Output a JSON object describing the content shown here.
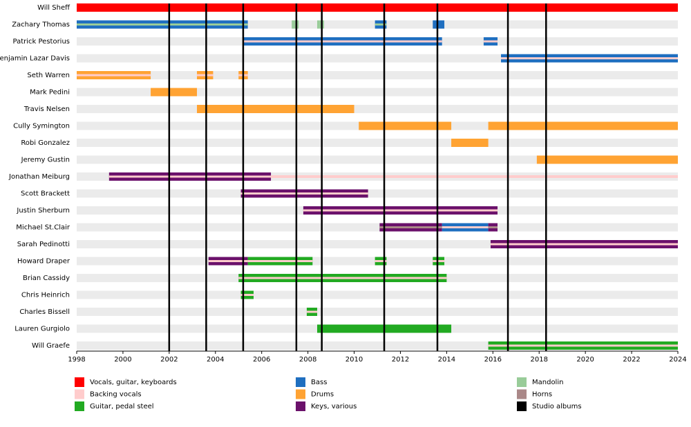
{
  "chart_data": {
    "type": "timeline",
    "xlim": [
      1998,
      2024
    ],
    "xticks": [
      1998,
      2000,
      2002,
      2004,
      2006,
      2008,
      2010,
      2012,
      2014,
      2016,
      2018,
      2020,
      2022,
      2024
    ],
    "roles": [
      {
        "name": "Vocals, guitar, keyboards",
        "color": "#ff0000"
      },
      {
        "name": "Backing vocals",
        "color": "#ffcccc"
      },
      {
        "name": "Guitar, pedal steel",
        "color": "#22aa22"
      },
      {
        "name": "Bass",
        "color": "#1f6fc0"
      },
      {
        "name": "Drums",
        "color": "#ffa333"
      },
      {
        "name": "Keys, various",
        "color": "#6b116b"
      },
      {
        "name": "Mandolin",
        "color": "#99cc99"
      },
      {
        "name": "Horns",
        "color": "#aa8888"
      }
    ],
    "albums": {
      "name": "Studio albums",
      "color": "#000000",
      "x": [
        2002.0,
        2003.6,
        2005.2,
        2007.5,
        2008.6,
        2011.3,
        2013.6,
        2016.65,
        2018.3
      ]
    },
    "members": [
      {
        "name": "Will Sheff",
        "periods": [
          {
            "start": 1998,
            "end": 2024,
            "color": "#ff0000"
          }
        ]
      },
      {
        "name": "Zachary Thomas",
        "periods": [
          {
            "start": 1998,
            "end": 2005.4,
            "color": "#1f6fc0",
            "stripe": "#99cc99"
          },
          {
            "start": 2007.3,
            "end": 2007.6,
            "color": "#99cc99"
          },
          {
            "start": 2008.4,
            "end": 2008.7,
            "color": "#99cc99"
          },
          {
            "start": 2010.9,
            "end": 2011.4,
            "color": "#1f6fc0",
            "stripe": "#99cc99"
          },
          {
            "start": 2013.4,
            "end": 2013.9,
            "color": "#1f6fc0"
          }
        ]
      },
      {
        "name": "Patrick Pestorius",
        "periods": [
          {
            "start": 2005.2,
            "end": 2013.8,
            "color": "#1f6fc0",
            "stripe": "#ffcccc"
          },
          {
            "start": 2015.6,
            "end": 2016.2,
            "color": "#1f6fc0",
            "stripe": "#ffcccc"
          }
        ]
      },
      {
        "name": "Benjamin Lazar Davis",
        "periods": [
          {
            "start": 2016.35,
            "end": 2024,
            "color": "#1f6fc0",
            "stripe": "#ffcccc"
          }
        ]
      },
      {
        "name": "Seth Warren",
        "periods": [
          {
            "start": 1998,
            "end": 2001.2,
            "color": "#ffa333",
            "stripe": "#ffcccc"
          },
          {
            "start": 2003.2,
            "end": 2003.9,
            "color": "#ffa333",
            "stripe": "#ffcccc"
          },
          {
            "start": 2005.0,
            "end": 2005.4,
            "color": "#ffa333",
            "stripe": "#ffcccc"
          }
        ]
      },
      {
        "name": "Mark Pedini",
        "periods": [
          {
            "start": 2001.2,
            "end": 2003.2,
            "color": "#ffa333"
          }
        ]
      },
      {
        "name": "Travis Nelsen",
        "periods": [
          {
            "start": 2003.2,
            "end": 2010.0,
            "color": "#ffa333"
          }
        ]
      },
      {
        "name": "Cully Symington",
        "periods": [
          {
            "start": 2010.2,
            "end": 2014.2,
            "color": "#ffa333"
          },
          {
            "start": 2015.8,
            "end": 2024,
            "color": "#ffa333"
          }
        ]
      },
      {
        "name": "Robi Gonzalez",
        "periods": [
          {
            "start": 2014.2,
            "end": 2015.8,
            "color": "#ffa333"
          }
        ]
      },
      {
        "name": "Jeremy Gustin",
        "periods": [
          {
            "start": 2017.9,
            "end": 2024,
            "color": "#ffa333"
          }
        ]
      },
      {
        "name": "Jonathan Meiburg",
        "periods": [
          {
            "start": 1999.4,
            "end": 2006.4,
            "color": "#6b116b",
            "stripe": "#ffcccc"
          },
          {
            "start": 2006.4,
            "end": 2024,
            "color": "#ffcccc",
            "thin": true
          }
        ]
      },
      {
        "name": "Scott Brackett",
        "periods": [
          {
            "start": 2005.1,
            "end": 2010.6,
            "color": "#6b116b",
            "stripe": "#ffcccc"
          }
        ]
      },
      {
        "name": "Justin Sherburn",
        "periods": [
          {
            "start": 2007.8,
            "end": 2016.2,
            "color": "#6b116b",
            "stripe": "#ffcccc"
          }
        ]
      },
      {
        "name": "Michael St.Clair",
        "periods": [
          {
            "start": 2011.1,
            "end": 2013.8,
            "color": "#6b116b",
            "stripe": "#aa8888"
          },
          {
            "start": 2013.8,
            "end": 2015.8,
            "color": "#1f6fc0",
            "stripe": "#ffcccc"
          },
          {
            "start": 2015.8,
            "end": 2016.2,
            "color": "#6b116b",
            "stripe": "#aa8888"
          }
        ]
      },
      {
        "name": "Sarah Pedinotti",
        "periods": [
          {
            "start": 2015.9,
            "end": 2024,
            "color": "#6b116b",
            "stripe": "#ffcccc"
          }
        ]
      },
      {
        "name": "Howard Draper",
        "periods": [
          {
            "start": 2003.7,
            "end": 2005.4,
            "color": "#6b116b",
            "stripe": "#ffcccc"
          },
          {
            "start": 2005.4,
            "end": 2008.2,
            "color": "#22aa22",
            "stripe": "#ffcccc"
          },
          {
            "start": 2010.9,
            "end": 2011.4,
            "color": "#22aa22",
            "stripe": "#ffcccc"
          },
          {
            "start": 2013.4,
            "end": 2013.9,
            "color": "#22aa22",
            "stripe": "#ffcccc"
          }
        ]
      },
      {
        "name": "Brian Cassidy",
        "periods": [
          {
            "start": 2005.0,
            "end": 2014.0,
            "color": "#22aa22",
            "stripe": "#ffcccc"
          }
        ]
      },
      {
        "name": "Chris Heinrich",
        "periods": [
          {
            "start": 2005.1,
            "end": 2005.65,
            "color": "#22aa22",
            "stripe": "#ffcccc"
          }
        ]
      },
      {
        "name": "Charles Bissell",
        "periods": [
          {
            "start": 2007.95,
            "end": 2008.4,
            "color": "#22aa22",
            "stripe": "#ffcccc"
          }
        ]
      },
      {
        "name": "Lauren Gurgiolo",
        "periods": [
          {
            "start": 2008.4,
            "end": 2014.2,
            "color": "#22aa22"
          }
        ]
      },
      {
        "name": "Will Graefe",
        "periods": [
          {
            "start": 2015.8,
            "end": 2024,
            "color": "#22aa22",
            "stripe": "#ffcccc"
          }
        ]
      }
    ]
  }
}
